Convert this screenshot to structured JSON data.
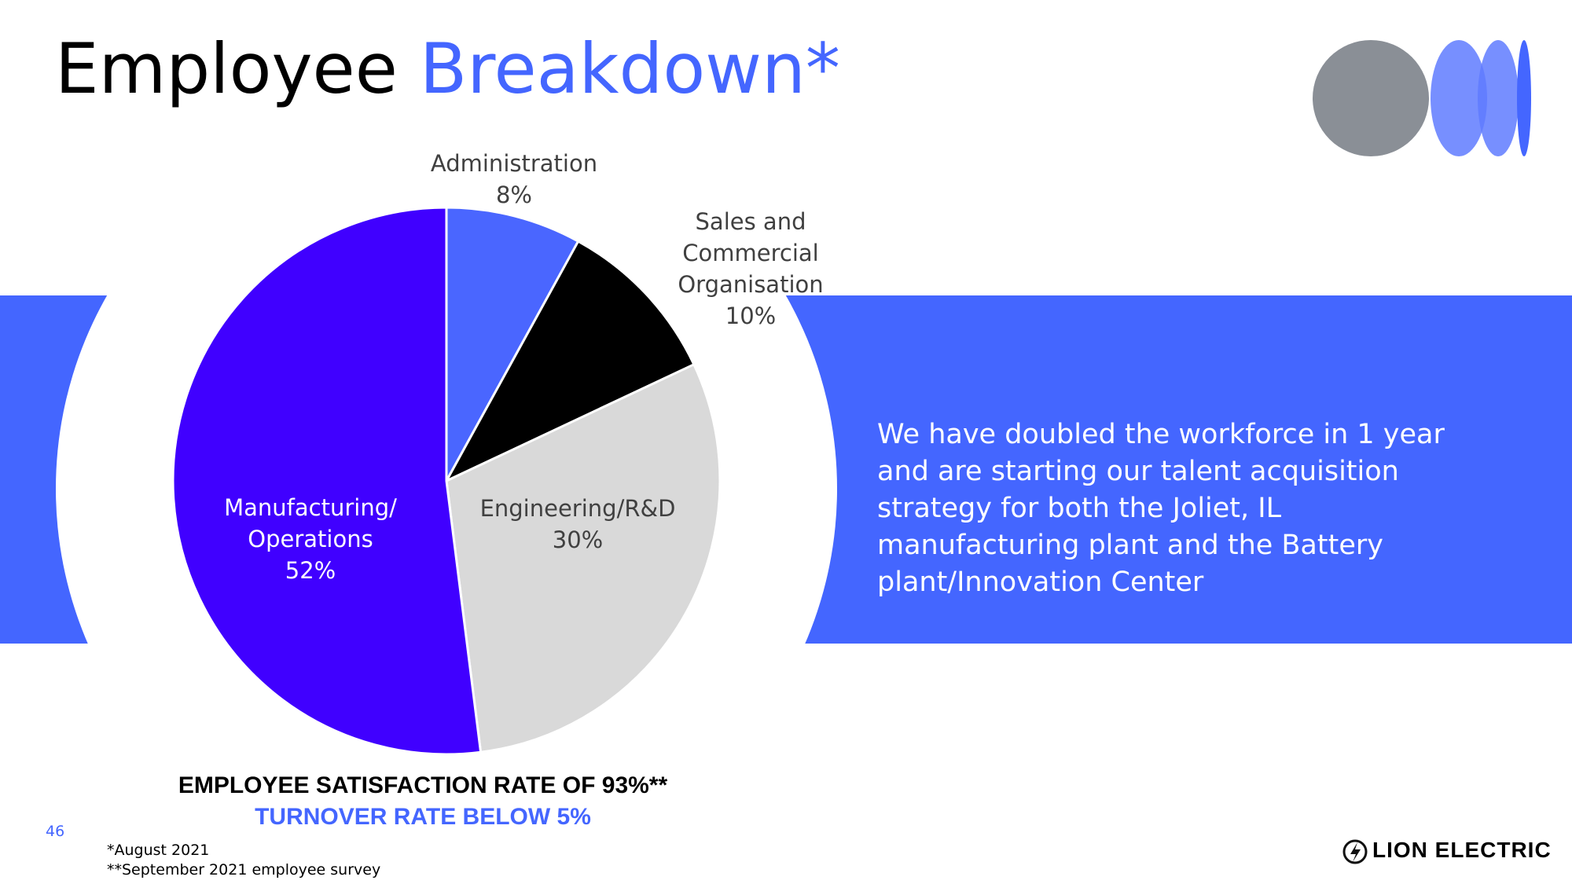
{
  "slide": {
    "title_parts": [
      "Employee",
      "Breakdown*"
    ],
    "body": "We have doubled the workforce in 1 year and are starting our talent acquisition strategy for both the Joliet, IL manufacturing plant and the Battery plant/Innovation Center",
    "stat_satisfaction": "EMPLOYEE SATISFACTION RATE OF 93%**",
    "stat_turnover": "TURNOVER RATE BELOW 5%",
    "page_number": "46",
    "footnotes": [
      "*August 2021",
      "**September 2021 employee survey"
    ],
    "logo": "LION ELECTRIC"
  },
  "chart_data": {
    "type": "pie",
    "categories": [
      "Administration",
      "Sales and Commercial Organisation",
      "Engineering/R&D",
      "Manufacturing/ Operations"
    ],
    "values": [
      8,
      10,
      30,
      52
    ],
    "value_labels": [
      "8%",
      "10%",
      "30%",
      "52%"
    ],
    "colors": [
      "#4a66ff",
      "#000000",
      "#d9d9d9",
      "#4000ff"
    ]
  }
}
